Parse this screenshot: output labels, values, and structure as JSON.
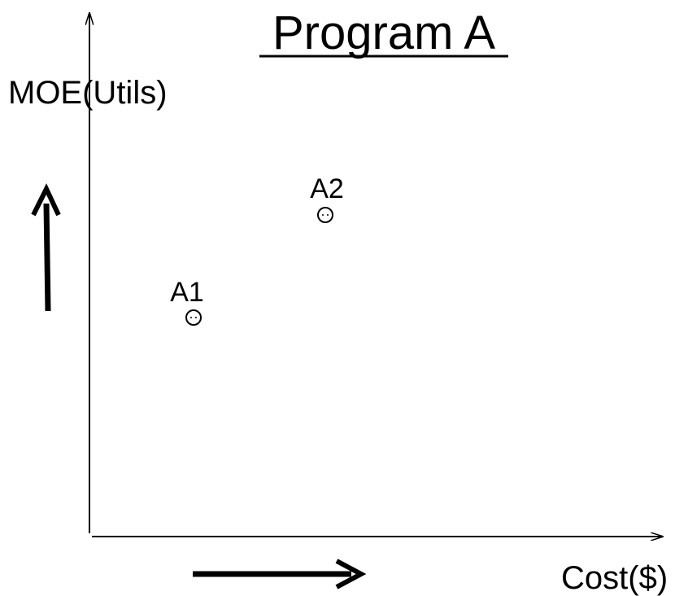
{
  "title": "Program A",
  "axes": {
    "y_label": "MOE(Utils)",
    "x_label": "Cost($)"
  },
  "points": [
    {
      "label": "A1"
    },
    {
      "label": "A2"
    }
  ]
}
